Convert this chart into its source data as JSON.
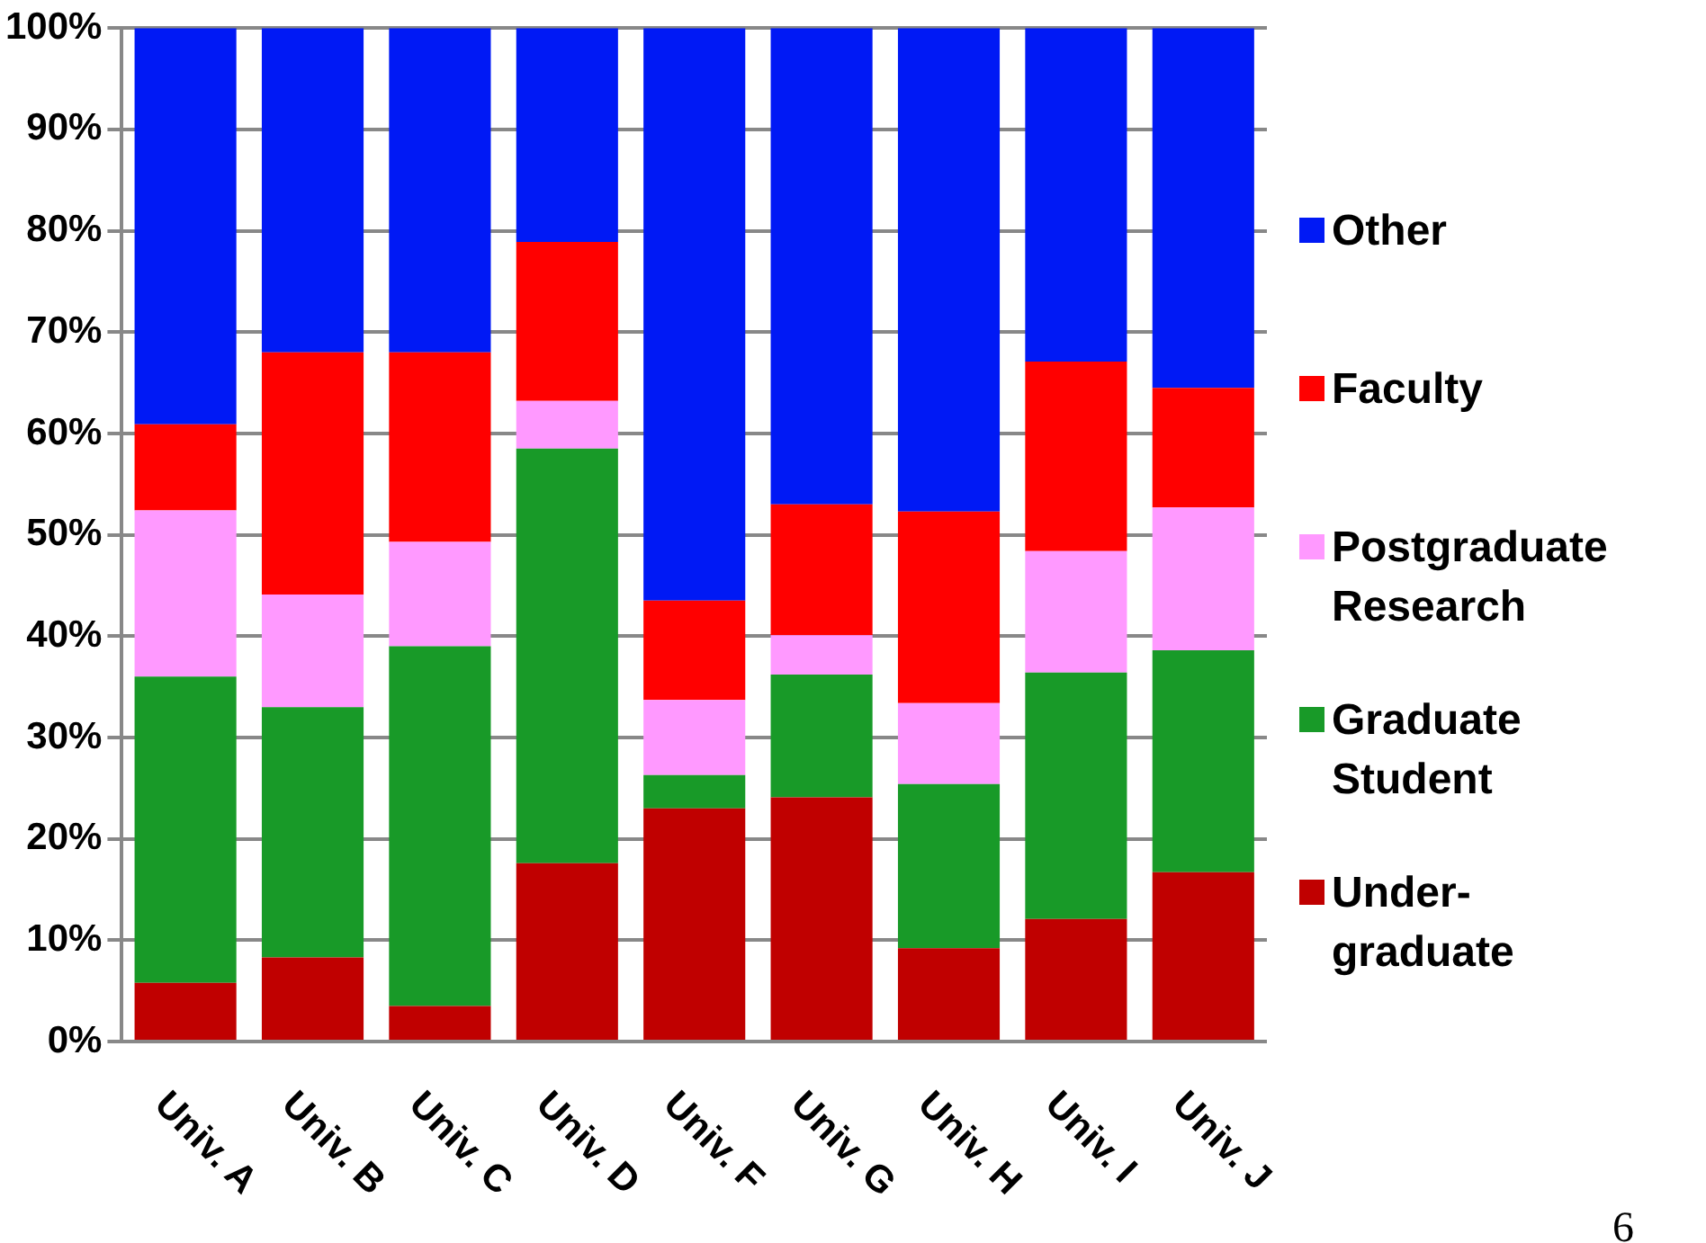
{
  "chart_data": {
    "type": "bar",
    "stacked": true,
    "categories": [
      "Univ. A",
      "Univ. B",
      "Univ. C",
      "Univ. D",
      "Univ. F",
      "Univ. G",
      "Univ. H",
      "Univ. I",
      "Univ. J"
    ],
    "series": [
      {
        "name": "Under-graduate",
        "color": "#c00000",
        "values": [
          5.8,
          8.3,
          3.5,
          17.6,
          23.0,
          24.1,
          9.2,
          12.1,
          16.7
        ]
      },
      {
        "name": "Graduate Student",
        "color": "#189a28",
        "values": [
          30.2,
          24.7,
          35.5,
          40.9,
          3.3,
          12.1,
          16.2,
          24.3,
          21.9
        ]
      },
      {
        "name": "Postgraduate Research",
        "color": "#ff99ff",
        "values": [
          16.4,
          11.1,
          10.3,
          4.7,
          7.4,
          3.9,
          8.0,
          12.0,
          14.1
        ]
      },
      {
        "name": "Faculty",
        "color": "#ff0000",
        "values": [
          8.5,
          23.9,
          18.7,
          15.7,
          9.8,
          12.9,
          18.9,
          18.7,
          11.8
        ]
      },
      {
        "name": "Other",
        "color": "#0019f5",
        "values": [
          39.1,
          32.0,
          32.0,
          21.1,
          56.5,
          47.0,
          47.7,
          32.9,
          35.5
        ]
      }
    ],
    "ylim": [
      0,
      100
    ],
    "yticks": [
      {
        "value": 0,
        "label": "0%"
      },
      {
        "value": 10,
        "label": "10%"
      },
      {
        "value": 20,
        "label": "20%"
      },
      {
        "value": 30,
        "label": "30%"
      },
      {
        "value": 40,
        "label": "40%"
      },
      {
        "value": 50,
        "label": "50%"
      },
      {
        "value": 60,
        "label": "60%"
      },
      {
        "value": 70,
        "label": "70%"
      },
      {
        "value": 80,
        "label": "80%"
      },
      {
        "value": 90,
        "label": "90%"
      },
      {
        "value": 100,
        "label": "100%"
      }
    ],
    "grid": "y",
    "legend": "right",
    "annotations": [
      "6"
    ]
  }
}
